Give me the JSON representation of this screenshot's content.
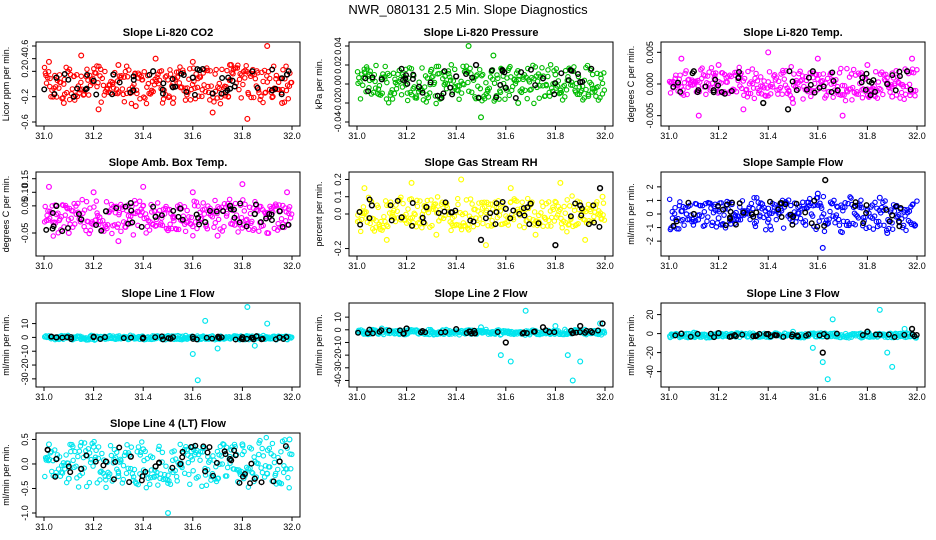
{
  "figure_title": "NWR_080131  2.5 Min. Slope Diagnostics",
  "colors": {
    "red": "#ff0000",
    "green": "#00bb00",
    "magenta": "#ff00ff",
    "yellow": "#ffff00",
    "blue": "#0000ff",
    "cyan": "#00e5ee",
    "black": "#000000"
  },
  "chart_data": [
    {
      "type": "scatter",
      "title": "Slope Li-820 CO2",
      "xlabel": "",
      "ylabel": "Licor ppm per min.",
      "color": "#ff0000",
      "xlim": [
        31.0,
        32.0
      ],
      "ylim": [
        -0.6,
        0.6
      ],
      "xticks": [
        "31.0",
        "31.2",
        "31.4",
        "31.6",
        "31.8",
        "32.0"
      ],
      "yticks": [
        "-0.6",
        "-0.2",
        "0.2",
        "0.4",
        "0.6"
      ],
      "series": [
        {
          "x": [
            31.02,
            31.08,
            31.15,
            31.22,
            31.3,
            31.37,
            31.45,
            31.52,
            31.6,
            31.68,
            31.75,
            31.82,
            31.9,
            31.96
          ],
          "y": [
            0.35,
            -0.3,
            0.45,
            -0.4,
            0.3,
            -0.35,
            0.4,
            -0.3,
            0.35,
            -0.45,
            0.3,
            -0.55,
            0.6,
            -0.3
          ]
        },
        {
          "x": [
            31.05,
            31.12,
            31.2,
            31.28,
            31.36,
            31.44,
            31.52,
            31.6,
            31.68,
            31.76,
            31.84,
            31.92,
            31.98
          ],
          "y": [
            0.1,
            -0.2,
            0.05,
            0.15,
            -0.1,
            0.2,
            -0.05,
            0.1,
            -0.15,
            0.05,
            0.2,
            -0.1,
            0.15
          ]
        }
      ]
    },
    {
      "type": "scatter",
      "title": "Slope Li-820 Pressure",
      "xlabel": "",
      "ylabel": "kPa per min.",
      "color": "#00bb00",
      "xlim": [
        31.0,
        32.0
      ],
      "ylim": [
        -0.04,
        0.04
      ],
      "xticks": [
        "31.0",
        "31.2",
        "31.4",
        "31.6",
        "31.8",
        "32.0"
      ],
      "yticks": [
        "-0.04",
        "-0.02",
        "0.00",
        "0.02",
        "0.04"
      ],
      "series": [
        {
          "x": [
            31.05,
            31.15,
            31.3,
            31.45,
            31.5,
            31.55,
            31.65,
            31.8,
            31.95
          ],
          "y": [
            0.01,
            -0.01,
            0.015,
            0.04,
            -0.035,
            0.03,
            -0.02,
            0.01,
            -0.005
          ]
        },
        {
          "x": [
            31.1,
            31.25,
            31.4,
            31.48,
            31.6,
            31.75,
            31.9
          ],
          "y": [
            0.005,
            -0.003,
            0.008,
            0.02,
            -0.004,
            0.006,
            0.002
          ]
        }
      ]
    },
    {
      "type": "scatter",
      "title": "Slope Li-820 Temp.",
      "xlabel": "",
      "ylabel": "degrees C per min.",
      "color": "#ff00ff",
      "xlim": [
        31.0,
        32.0
      ],
      "ylim": [
        -0.006,
        0.006
      ],
      "xticks": [
        "31.0",
        "31.2",
        "31.4",
        "31.6",
        "31.8",
        "32.0"
      ],
      "yticks": [
        "-0.005",
        "0.000",
        "0.005"
      ],
      "series": [
        {
          "x": [
            31.05,
            31.12,
            31.2,
            31.3,
            31.4,
            31.5,
            31.6,
            31.7,
            31.8,
            31.9,
            31.98
          ],
          "y": [
            0.004,
            -0.005,
            0.003,
            -0.004,
            0.005,
            -0.003,
            0.004,
            -0.005,
            0.003,
            -0.002,
            0.004
          ]
        },
        {
          "x": [
            31.1,
            31.18,
            31.28,
            31.38,
            31.48,
            31.58,
            31.68,
            31.78,
            31.88,
            31.96
          ],
          "y": [
            0.002,
            -0.001,
            0.001,
            -0.003,
            -0.004,
            0.002,
            -0.001,
            0.001,
            0.0,
            0.002
          ]
        }
      ]
    },
    {
      "type": "scatter",
      "title": "Slope Amb. Box Temp.",
      "xlabel": "",
      "ylabel": "degrees C per min.",
      "color": "#ff00ff",
      "xlim": [
        31.0,
        32.0
      ],
      "ylim": [
        -0.12,
        0.16
      ],
      "xticks": [
        "31.0",
        "31.2",
        "31.4",
        "31.6",
        "31.8",
        "32.0"
      ],
      "yticks": [
        "-0.05",
        "0.05",
        "0.10",
        "0.15"
      ],
      "series": [
        {
          "x": [
            31.02,
            31.1,
            31.2,
            31.3,
            31.4,
            31.5,
            31.6,
            31.7,
            31.8,
            31.9,
            31.98
          ],
          "y": [
            0.12,
            -0.05,
            0.1,
            -0.08,
            0.12,
            -0.04,
            0.1,
            -0.06,
            0.13,
            -0.05,
            0.1
          ]
        },
        {
          "x": [
            31.05,
            31.15,
            31.25,
            31.35,
            31.45,
            31.55,
            31.65,
            31.75,
            31.85,
            31.95
          ],
          "y": [
            0.05,
            0.0,
            0.03,
            0.06,
            0.01,
            0.04,
            -0.01,
            0.05,
            0.02,
            0.03
          ]
        }
      ]
    },
    {
      "type": "scatter",
      "title": "Slope Gas Stream RH",
      "xlabel": "",
      "ylabel": "percent per min.",
      "color": "#ffff00",
      "xlim": [
        31.0,
        32.0
      ],
      "ylim": [
        -0.22,
        0.22
      ],
      "xticks": [
        "31.0",
        "31.2",
        "31.4",
        "31.6",
        "31.8",
        "32.0"
      ],
      "yticks": [
        "-0.2",
        "0.0",
        "0.1",
        "0.2"
      ],
      "series": [
        {
          "x": [
            31.03,
            31.12,
            31.22,
            31.32,
            31.42,
            31.52,
            31.62,
            31.72,
            31.82,
            31.92,
            31.99
          ],
          "y": [
            0.15,
            -0.15,
            0.18,
            -0.12,
            0.2,
            -0.18,
            0.15,
            -0.12,
            0.18,
            -0.15,
            0.1
          ]
        },
        {
          "x": [
            31.06,
            31.18,
            31.28,
            31.38,
            31.5,
            31.6,
            31.7,
            31.8,
            31.9,
            31.98
          ],
          "y": [
            0.05,
            -0.02,
            0.04,
            0.01,
            -0.15,
            0.03,
            0.06,
            -0.18,
            0.05,
            0.15
          ]
        }
      ]
    },
    {
      "type": "scatter",
      "title": "Slope Sample Flow",
      "xlabel": "",
      "ylabel": "ml/min per min.",
      "color": "#0000ff",
      "xlim": [
        31.0,
        32.0
      ],
      "ylim": [
        -2.8,
        2.8
      ],
      "xticks": [
        "31.0",
        "31.2",
        "31.4",
        "31.6",
        "31.8",
        "32.0"
      ],
      "yticks": [
        "-2",
        "-1",
        "0",
        "1",
        "2"
      ],
      "series": [
        {
          "x": [
            31.05,
            31.2,
            31.4,
            31.55,
            31.6,
            31.62,
            31.7,
            31.85,
            31.88,
            31.95
          ],
          "y": [
            0.2,
            -0.3,
            0.4,
            -0.8,
            1.5,
            -2.5,
            0.5,
            1.2,
            -1.4,
            0.3
          ]
        },
        {
          "x": [
            31.1,
            31.3,
            31.5,
            31.63,
            31.75,
            31.9
          ],
          "y": [
            0.0,
            0.1,
            -0.2,
            2.5,
            0.6,
            -0.1
          ]
        }
      ]
    },
    {
      "type": "scatter",
      "title": "Slope Line 1 Flow",
      "xlabel": "",
      "ylabel": "ml/min per min.",
      "color": "#00e5ee",
      "xlim": [
        31.0,
        32.0
      ],
      "ylim": [
        -33,
        22
      ],
      "xticks": [
        "31.0",
        "31.2",
        "31.4",
        "31.6",
        "31.8",
        "32.0"
      ],
      "yticks": [
        "-30",
        "-20",
        "-10",
        "0",
        "10"
      ],
      "series": [
        {
          "x": [
            31.1,
            31.3,
            31.5,
            31.6,
            31.62,
            31.65,
            31.7,
            31.82,
            31.85,
            31.9
          ],
          "y": [
            0.5,
            -0.5,
            1.0,
            -12.0,
            -31.0,
            12.0,
            -8.0,
            22.0,
            -6.0,
            10.0
          ]
        },
        {
          "x": [
            31.05,
            31.2,
            31.4,
            31.6,
            31.8,
            31.95
          ],
          "y": [
            0.0,
            0.3,
            -0.2,
            0.4,
            0.1,
            -0.1
          ]
        }
      ]
    },
    {
      "type": "scatter",
      "title": "Slope Line 2 Flow",
      "xlabel": "",
      "ylabel": "ml/min per min.",
      "color": "#00e5ee",
      "xlim": [
        31.0,
        32.0
      ],
      "ylim": [
        -42,
        18
      ],
      "xticks": [
        "31.0",
        "31.2",
        "31.4",
        "31.6",
        "31.8",
        "32.0"
      ],
      "yticks": [
        "-40",
        "-30",
        "-20",
        "-10",
        "0",
        "10"
      ],
      "series": [
        {
          "x": [
            31.1,
            31.3,
            31.5,
            31.58,
            31.62,
            31.68,
            31.8,
            31.85,
            31.87,
            31.9,
            31.98
          ],
          "y": [
            1.0,
            -1.0,
            2.0,
            -20.0,
            -25.0,
            15.0,
            3.0,
            -20.0,
            -40.0,
            -25.0,
            5.0
          ]
        },
        {
          "x": [
            31.05,
            31.2,
            31.4,
            31.6,
            31.75,
            31.9,
            31.99
          ],
          "y": [
            0.0,
            1.0,
            0.5,
            -10.0,
            2.0,
            3.0,
            5.0
          ]
        }
      ]
    },
    {
      "type": "scatter",
      "title": "Slope Line 3 Flow",
      "xlabel": "",
      "ylabel": "ml/min per min.",
      "color": "#00e5ee",
      "xlim": [
        31.0,
        32.0
      ],
      "ylim": [
        -52,
        28
      ],
      "xticks": [
        "31.0",
        "31.2",
        "31.4",
        "31.6",
        "31.8",
        "32.0"
      ],
      "yticks": [
        "-40",
        "-20",
        "0",
        "20"
      ],
      "series": [
        {
          "x": [
            31.1,
            31.3,
            31.5,
            31.58,
            31.62,
            31.64,
            31.66,
            31.85,
            31.88,
            31.9,
            31.95
          ],
          "y": [
            1.0,
            -1.0,
            2.0,
            -15.0,
            -30.0,
            -48.0,
            15.0,
            25.0,
            -20.0,
            -35.0,
            5.0
          ]
        },
        {
          "x": [
            31.05,
            31.2,
            31.4,
            31.62,
            31.8,
            31.98
          ],
          "y": [
            0.0,
            0.5,
            -0.5,
            -20.0,
            2.0,
            5.0
          ]
        }
      ]
    },
    {
      "type": "scatter",
      "title": "Slope Line 4 (LT) Flow",
      "xlabel": "",
      "ylabel": "ml/min per min.",
      "color": "#00e5ee",
      "xlim": [
        31.0,
        32.0
      ],
      "ylim": [
        -1.0,
        0.55
      ],
      "xticks": [
        "31.0",
        "31.2",
        "31.4",
        "31.6",
        "31.8",
        "32.0"
      ],
      "yticks": [
        "-1.0",
        "-0.5",
        "0.0",
        "0.5"
      ],
      "series": [
        {
          "x": [
            31.02,
            31.1,
            31.2,
            31.3,
            31.4,
            31.5,
            31.6,
            31.7,
            31.8,
            31.9,
            31.99
          ],
          "y": [
            0.4,
            -0.3,
            0.35,
            -0.25,
            0.3,
            -1.0,
            0.35,
            -0.3,
            0.4,
            -0.2,
            0.5
          ]
        },
        {
          "x": [
            31.05,
            31.15,
            31.25,
            31.35,
            31.45,
            31.55,
            31.65,
            31.75,
            31.85,
            31.95
          ],
          "y": [
            0.1,
            -0.1,
            0.05,
            0.15,
            -0.05,
            0.0,
            -0.15,
            0.1,
            -0.3,
            0.05
          ]
        }
      ]
    }
  ]
}
